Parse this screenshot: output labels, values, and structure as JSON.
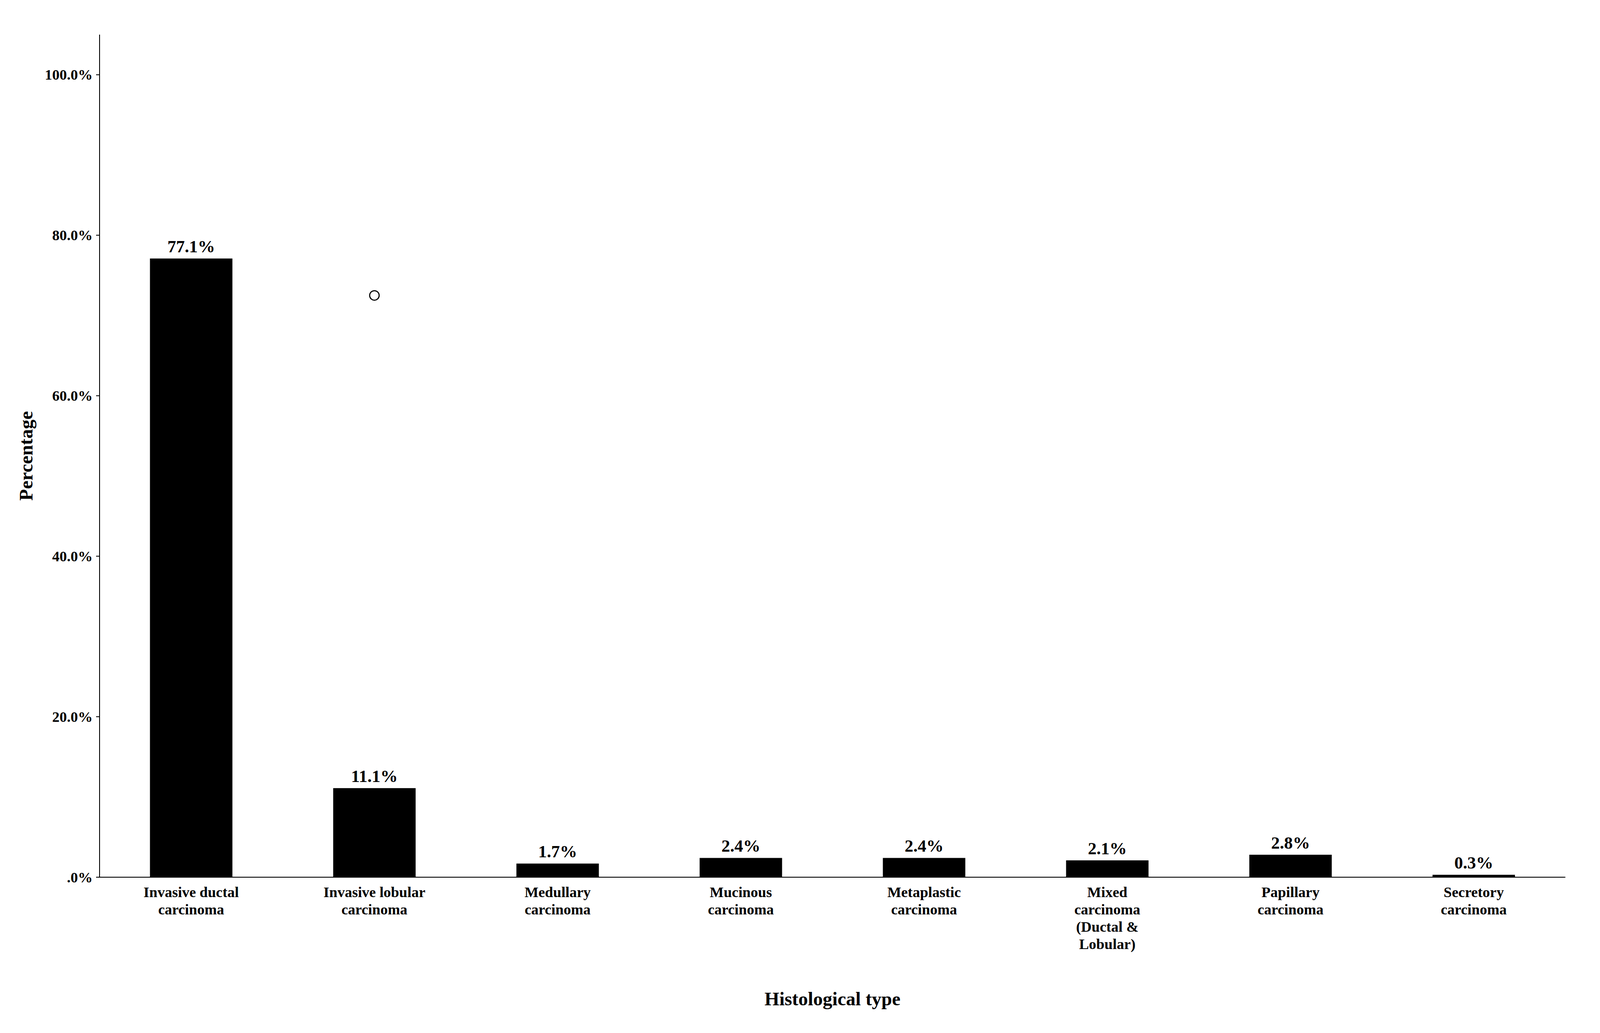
{
  "chart_data": {
    "type": "bar",
    "categories": [
      "Invasive ductal\ncarcinoma",
      "Invasive lobular\ncarcinoma",
      "Medullary\ncarcinoma",
      "Mucinous\ncarcinoma",
      "Metaplastic\ncarcinoma",
      "Mixed\ncarcinoma\n(Ductal &\nLobular)",
      "Papillary\ncarcinoma",
      "Secretory\ncarcinoma"
    ],
    "values": [
      77.1,
      11.1,
      1.7,
      2.4,
      2.4,
      2.1,
      2.8,
      0.3
    ],
    "value_labels": [
      "77.1%",
      "11.1%",
      "1.7%",
      "2.4%",
      "2.4%",
      "2.1%",
      "2.8%",
      "0.3%"
    ],
    "data_labels": true,
    "color": "#000000",
    "xlabel": "Histological type",
    "ylabel": "Percentage",
    "ylim": [
      0,
      105
    ],
    "yticks": [
      {
        "value": 0,
        "label": ".0%"
      },
      {
        "value": 20,
        "label": "20.0%"
      },
      {
        "value": 40,
        "label": "40.0%"
      },
      {
        "value": 60,
        "label": "60.0%"
      },
      {
        "value": 80,
        "label": "80.0%"
      },
      {
        "value": 100,
        "label": "100.0%"
      }
    ],
    "outliers": [
      {
        "category": "Invasive lobular\ncarcinoma",
        "value": 72.5
      }
    ],
    "grid": false
  }
}
